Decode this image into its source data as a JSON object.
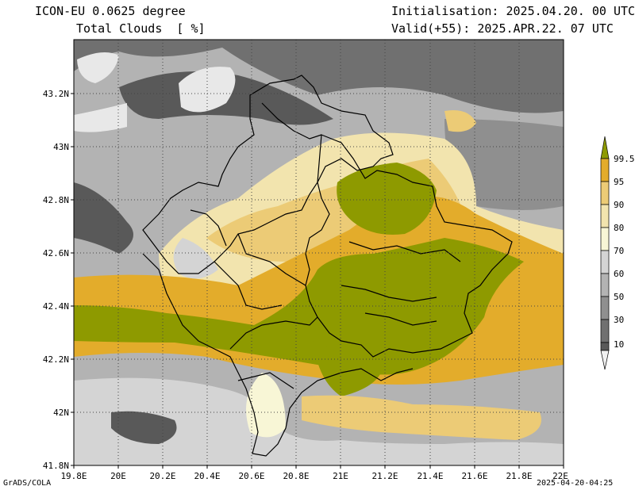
{
  "header": {
    "model": "ICON-EU 0.0625 degree",
    "variable": "Total Clouds  [ %]",
    "init": "Initialisation: 2025.04.20. 00 UTC",
    "valid": "Valid(+55): 2025.APR.22. 07 UTC"
  },
  "footer": {
    "software": "GrADS/COLA",
    "timestamp": "2025-04-20-04:25"
  },
  "axes": {
    "x_ticks": [
      "19.8E",
      "20E",
      "20.2E",
      "20.4E",
      "20.6E",
      "20.8E",
      "21E",
      "21.2E",
      "21.4E",
      "21.6E",
      "21.8E",
      "22E"
    ],
    "y_ticks": [
      "43.2N",
      "43N",
      "42.8N",
      "42.6N",
      "42.4N",
      "42.2N",
      "42N",
      "41.8N"
    ]
  },
  "colorbar": {
    "levels": [
      "99.5",
      "95",
      "90",
      "80",
      "70",
      "60",
      "50",
      "30",
      "10"
    ],
    "colors": [
      "#8e9a00",
      "#e3ac2b",
      "#eccb76",
      "#f2e4ae",
      "#f8f6d6",
      "#d4d4d4",
      "#b3b3b3",
      "#8f8f8f",
      "#707070",
      "#595959",
      "#f0f0f0"
    ]
  }
}
